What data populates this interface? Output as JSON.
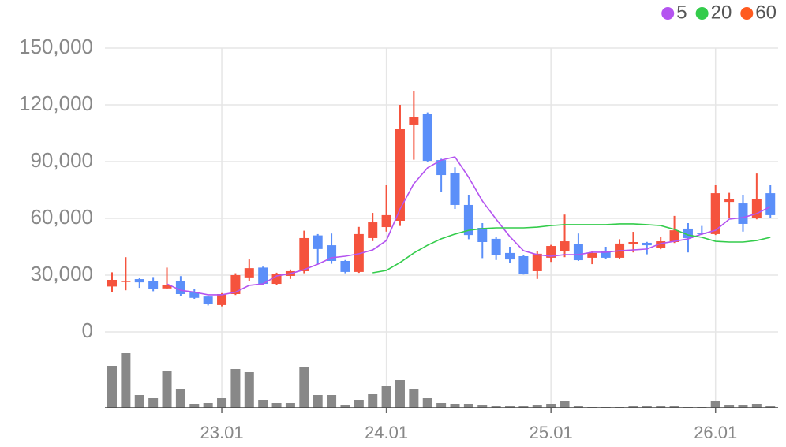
{
  "chart_data": {
    "type": "candlestick",
    "categories": [
      null,
      null,
      null,
      null,
      null,
      null,
      null,
      null,
      "23.01",
      null,
      null,
      null,
      null,
      null,
      null,
      null,
      null,
      null,
      null,
      null,
      "24.01",
      null,
      null,
      null,
      null,
      null,
      null,
      null,
      null,
      null,
      null,
      null,
      "25.01",
      null,
      null,
      null,
      null,
      null,
      null,
      null,
      null,
      null,
      null,
      null,
      "26.01",
      null,
      null,
      null,
      null
    ],
    "open": [
      24000,
      26500,
      27900,
      26700,
      23000,
      27000,
      21000,
      18700,
      14200,
      20000,
      28800,
      34000,
      25400,
      29600,
      32100,
      51000,
      45800,
      37500,
      31700,
      49600,
      55400,
      58750,
      109600,
      115000,
      90800,
      83800,
      67100,
      55000,
      49200,
      41700,
      40000,
      32100,
      39200,
      42900,
      46300,
      39200,
      42900,
      39200,
      46300,
      47100,
      44200,
      47500,
      54600,
      52500,
      51700,
      68700,
      67900,
      60000,
      73300
    ],
    "close": [
      27500,
      27000,
      26200,
      22500,
      25000,
      20000,
      18000,
      14600,
      20000,
      30000,
      33700,
      25400,
      30800,
      32100,
      49600,
      43800,
      37500,
      31700,
      51700,
      57900,
      61700,
      107500,
      113750,
      90400,
      82900,
      67100,
      51200,
      47500,
      40800,
      38300,
      30800,
      41300,
      45400,
      47900,
      37900,
      41700,
      39200,
      46700,
      47500,
      45800,
      47900,
      53700,
      49600,
      51700,
      73300,
      70000,
      57100,
      70400,
      61700
    ],
    "high": [
      31500,
      39500,
      28500,
      29000,
      34000,
      29500,
      22500,
      19200,
      20500,
      31000,
      38300,
      34500,
      31300,
      33000,
      53500,
      51700,
      52000,
      38000,
      55500,
      62900,
      77500,
      120000,
      127500,
      116000,
      91500,
      87000,
      72500,
      57500,
      50000,
      45000,
      40500,
      42500,
      46000,
      62000,
      52000,
      42500,
      45000,
      49000,
      52900,
      47600,
      50000,
      61300,
      57500,
      56000,
      77500,
      73500,
      72500,
      83700,
      77500
    ],
    "low": [
      21000,
      22000,
      23300,
      21500,
      22500,
      19000,
      17500,
      14000,
      13500,
      19500,
      27000,
      25000,
      25000,
      28000,
      31000,
      36000,
      36000,
      31000,
      31200,
      48000,
      53000,
      56000,
      91000,
      90000,
      74000,
      65000,
      49000,
      39000,
      38000,
      36600,
      30300,
      28000,
      37000,
      39500,
      37500,
      35800,
      38700,
      38700,
      42000,
      41000,
      43700,
      47000,
      42000,
      51200,
      51200,
      60000,
      53000,
      59500,
      60000
    ],
    "up_color": "#f5533d",
    "down_color": "#5b8ff9",
    "ylim": [
      0,
      150000
    ],
    "yticks": [
      0,
      {
        "value": 30000,
        "label": "30,000"
      },
      {
        "value": 60000,
        "label": "60,000"
      },
      {
        "value": 90000,
        "label": "90,000"
      },
      {
        "value": 120000,
        "label": "120,000"
      },
      {
        "value": 150000,
        "label": "150,000"
      }
    ],
    "grid": true,
    "legend": "top-right",
    "ma": [
      {
        "name": "5",
        "color": "#b454f0",
        "values": [
          null,
          null,
          null,
          null,
          25400,
          22000,
          21000,
          19600,
          19600,
          21000,
          24600,
          25400,
          29600,
          30800,
          32900,
          35800,
          39200,
          40000,
          41300,
          43300,
          48300,
          65000,
          78300,
          86700,
          90800,
          92500,
          81700,
          69200,
          59600,
          50400,
          42900,
          40800,
          40000,
          40800,
          40800,
          42100,
          42100,
          42900,
          43300,
          43800,
          46700,
          47900,
          49200,
          51700,
          53700,
          59600,
          60400,
          62500,
          66200
        ]
      },
      {
        "name": "20",
        "color": "#33cc4b",
        "values": [
          null,
          null,
          null,
          null,
          null,
          null,
          null,
          null,
          null,
          null,
          null,
          null,
          null,
          null,
          null,
          null,
          null,
          null,
          null,
          31250,
          32500,
          36700,
          41700,
          45800,
          49200,
          51700,
          53700,
          54600,
          55000,
          55000,
          55000,
          55400,
          56200,
          56700,
          56700,
          56700,
          56700,
          57100,
          57100,
          56700,
          56200,
          54200,
          51200,
          50000,
          47900,
          47500,
          47500,
          48300,
          50000
        ]
      },
      {
        "name": "60",
        "color": "#ff5a1f",
        "values": [
          null,
          null,
          null,
          null,
          null,
          null,
          null,
          null,
          null,
          null,
          null,
          null,
          null,
          null,
          null,
          null,
          null,
          null,
          null,
          null,
          null,
          null,
          null,
          null,
          null,
          null,
          null,
          null,
          null,
          null,
          null,
          null,
          null,
          null,
          null,
          null,
          null,
          null,
          null,
          null,
          null,
          null,
          null,
          null,
          null,
          null,
          null,
          null,
          null
        ]
      }
    ],
    "volume": {
      "color": "#888888",
      "ylim": [
        0,
        70
      ],
      "values": [
        53,
        69,
        16,
        12,
        47,
        23,
        5,
        6,
        12,
        49,
        45,
        9,
        6,
        6,
        51,
        16,
        16,
        3,
        10,
        17,
        28,
        35,
        23,
        12,
        6,
        5,
        4,
        3,
        2,
        2,
        2,
        3,
        5,
        8,
        2,
        1,
        1,
        1,
        2,
        2,
        2,
        2,
        1,
        1,
        8,
        3,
        3,
        4,
        2
      ]
    }
  }
}
